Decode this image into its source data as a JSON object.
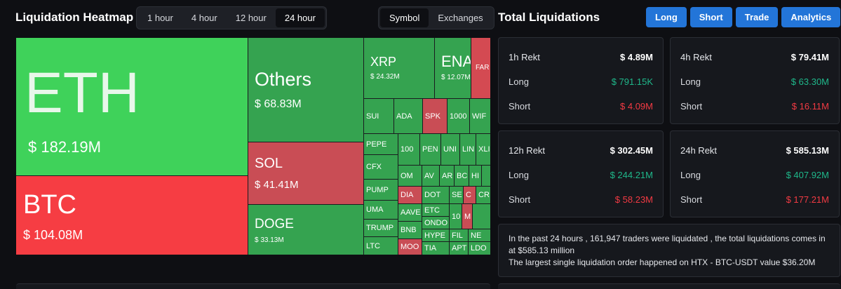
{
  "heatmap": {
    "title": "Liquidation Heatmap",
    "time_tabs": [
      {
        "label": "1 hour"
      },
      {
        "label": "4 hour"
      },
      {
        "label": "12 hour"
      },
      {
        "label": "24 hour",
        "active": true
      }
    ],
    "view_tabs": [
      {
        "label": "Symbol",
        "active": true
      },
      {
        "label": "Exchanges"
      }
    ],
    "cells": {
      "eth": {
        "name": "ETH",
        "value": "$ 182.19M"
      },
      "btc": {
        "name": "BTC",
        "value": "$ 104.08M"
      },
      "others": {
        "name": "Others",
        "value": "$ 68.83M"
      },
      "sol": {
        "name": "SOL",
        "value": "$ 41.41M"
      },
      "doge": {
        "name": "DOGE",
        "value": "$ 33.13M"
      },
      "xrp": {
        "name": "XRP",
        "value": "$ 24.32M"
      },
      "ena": {
        "name": "ENA",
        "value": "$ 12.07M"
      },
      "far": {
        "name": "FAR"
      },
      "sui": {
        "name": "SUI"
      },
      "ada": {
        "name": "ADA"
      },
      "spk": {
        "name": "SPK"
      },
      "c1000": {
        "name": "1000"
      },
      "wif": {
        "name": "WIF"
      },
      "pepe": {
        "name": "PEPE"
      },
      "cfx": {
        "name": "CFX"
      },
      "pump": {
        "name": "PUMP"
      },
      "uma": {
        "name": "UMA"
      },
      "trump": {
        "name": "TRUMP"
      },
      "ltc": {
        "name": "LTC"
      },
      "c100": {
        "name": "100"
      },
      "pen": {
        "name": "PEN"
      },
      "uni": {
        "name": "UNI"
      },
      "lin": {
        "name": "LIN"
      },
      "xli": {
        "name": "XLI"
      },
      "om": {
        "name": "OM"
      },
      "av": {
        "name": "AV"
      },
      "ar": {
        "name": "AR"
      },
      "bc": {
        "name": "BC"
      },
      "hi": {
        "name": "HI"
      },
      "dia": {
        "name": "DIA"
      },
      "dot": {
        "name": "DOT"
      },
      "se": {
        "name": "SE"
      },
      "c": {
        "name": "C"
      },
      "cr": {
        "name": "CR"
      },
      "aave": {
        "name": "AAVE"
      },
      "etc": {
        "name": "ETC"
      },
      "ondo": {
        "name": "ONDO"
      },
      "c10": {
        "name": "10"
      },
      "m": {
        "name": "M"
      },
      "bnb": {
        "name": "BNB"
      },
      "hype": {
        "name": "HYPE"
      },
      "fil": {
        "name": "FIL"
      },
      "ne": {
        "name": "NE"
      },
      "moo": {
        "name": "MOO"
      },
      "tia": {
        "name": "TIA"
      },
      "apt": {
        "name": "APT"
      },
      "ld": {
        "name": "LDO"
      }
    }
  },
  "total": {
    "title": "Total Liquidations",
    "actions": [
      "Long",
      "Short",
      "Trade",
      "Analytics"
    ],
    "cards": [
      {
        "title": "1h Rekt",
        "total": "$ 4.89M",
        "long_label": "Long",
        "long": "$ 791.15K",
        "short_label": "Short",
        "short": "$ 4.09M"
      },
      {
        "title": "4h Rekt",
        "total": "$ 79.41M",
        "long_label": "Long",
        "long": "$ 63.30M",
        "short_label": "Short",
        "short": "$ 16.11M"
      },
      {
        "title": "12h Rekt",
        "total": "$ 302.45M",
        "long_label": "Long",
        "long": "$ 244.21M",
        "short_label": "Short",
        "short": "$ 58.23M"
      },
      {
        "title": "24h Rekt",
        "total": "$ 585.13M",
        "long_label": "Long",
        "long": "$ 407.92M",
        "short_label": "Short",
        "short": "$ 177.21M"
      }
    ],
    "summary_line1": "In the past 24 hours , 161,947 traders were liquidated , the total liquidations comes in at $585.13 million",
    "summary_line2": "The largest single liquidation order happened on HTX - BTC-USDT value $36.20M"
  },
  "colors": {
    "bright_green": "#3fd25a",
    "green": "#35a350",
    "red": "#f63d43",
    "muted_red": "#c94d55",
    "accent_blue": "#2375d8",
    "long_value": "#1fb78a",
    "short_value": "#f23a43"
  }
}
